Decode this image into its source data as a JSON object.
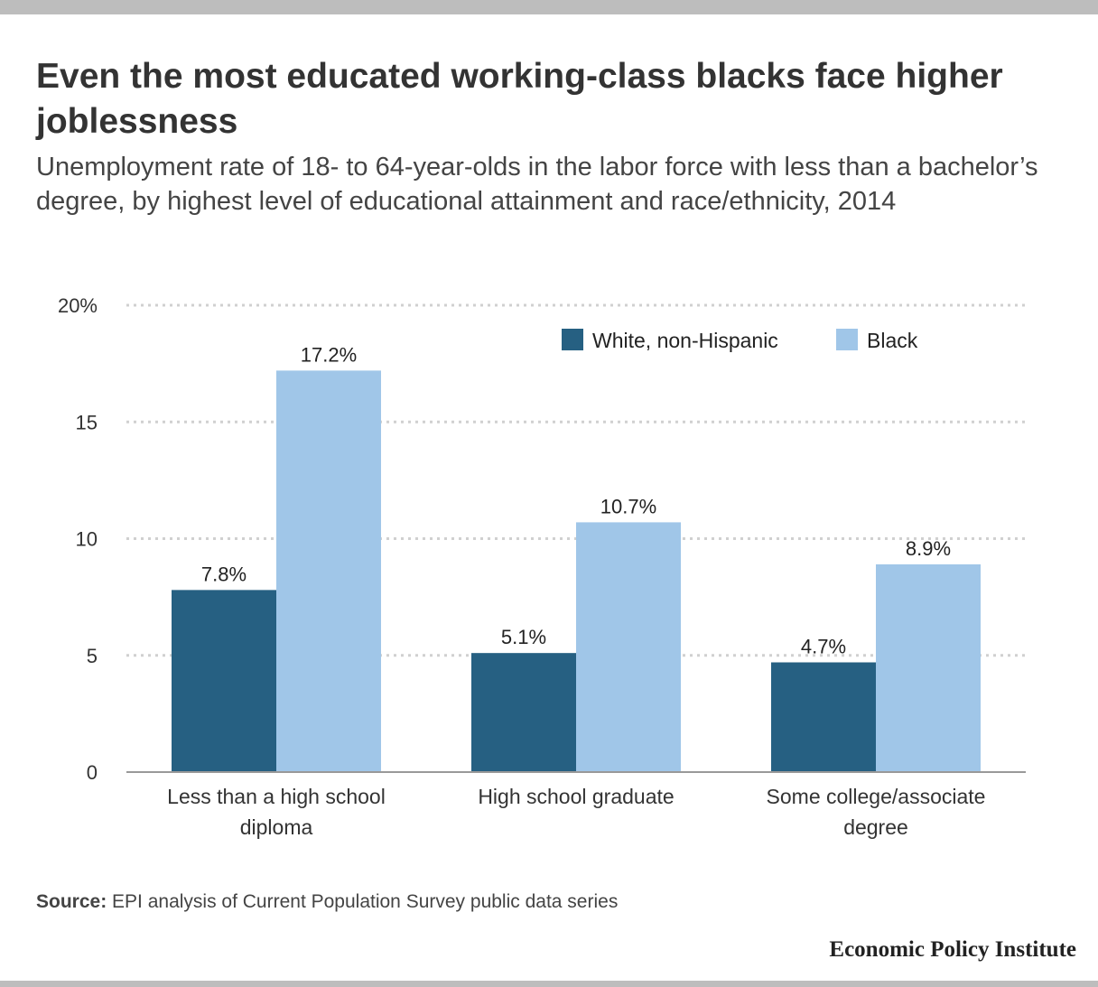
{
  "title": "Even the most educated working-class blacks face higher joblessness",
  "subtitle": "Unemployment rate of 18- to 64-year-olds in the labor force with less than a bachelor’s degree, by highest level of educational attainment and race/ethnicity, 2014",
  "source_label": "Source:",
  "source_text": " EPI analysis of Current Population Survey public data series",
  "brand": "Economic Policy Institute",
  "chart_data": {
    "type": "bar",
    "categories": [
      [
        "Less than a high school",
        "diploma"
      ],
      [
        "High school graduate"
      ],
      [
        "Some college/associate",
        "degree"
      ]
    ],
    "series": [
      {
        "name": "White, non-Hispanic",
        "color": "#266082",
        "values": [
          7.8,
          5.1,
          4.7
        ],
        "labels": [
          "7.8%",
          "5.1%",
          "4.7%"
        ]
      },
      {
        "name": "Black",
        "color": "#a0c6e8",
        "values": [
          17.2,
          10.7,
          8.9
        ],
        "labels": [
          "17.2%",
          "10.7%",
          "8.9%"
        ]
      }
    ],
    "ylim": [
      0,
      20
    ],
    "yticks": [
      0,
      5,
      10,
      15,
      20
    ],
    "ytick_labels": [
      "0",
      "5",
      "10",
      "15",
      "20%"
    ],
    "grid": true,
    "legend_position": "top-right"
  }
}
